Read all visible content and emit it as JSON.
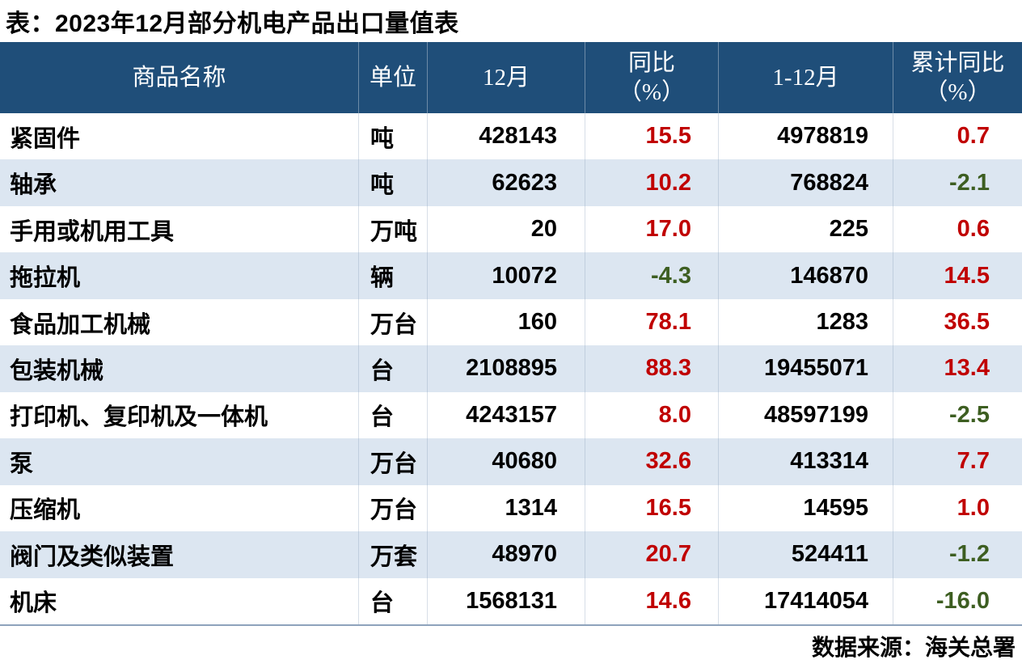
{
  "title": "表：2023年12月部分机电产品出口量值表",
  "footer": {
    "source": "数据来源：海关总署"
  },
  "colors": {
    "header_bg": "#1F4E79",
    "stripe": "#DCE6F1",
    "positive_value": "#C00000",
    "negative_value": "#3D5E21",
    "bottom_line": "#8EA3BC"
  },
  "table": {
    "columns": [
      {
        "label": "商品名称",
        "sub": ""
      },
      {
        "label": "单位",
        "sub": ""
      },
      {
        "label": "12月",
        "sub": ""
      },
      {
        "label": "同比",
        "sub": "（%）"
      },
      {
        "label": "1-12月",
        "sub": ""
      },
      {
        "label": "累计同比",
        "sub": "（%）"
      }
    ],
    "rows": [
      [
        "紧固件",
        "吨",
        "428143",
        "15.5",
        "4978819",
        "0.7"
      ],
      [
        "轴承",
        "吨",
        "62623",
        "10.2",
        "768824",
        "-2.1"
      ],
      [
        "手用或机用工具",
        "万吨",
        "20",
        "17.0",
        "225",
        "0.6"
      ],
      [
        "拖拉机",
        "辆",
        "10072",
        "-4.3",
        "146870",
        "14.5"
      ],
      [
        "食品加工机械",
        "万台",
        "160",
        "78.1",
        "1283",
        "36.5"
      ],
      [
        "包装机械",
        "台",
        "2108895",
        "88.3",
        "19455071",
        "13.4"
      ],
      [
        "打印机、复印机及一体机",
        "台",
        "4243157",
        "8.0",
        "48597199",
        "-2.5"
      ],
      [
        "泵",
        "万台",
        "40680",
        "32.6",
        "413314",
        "7.7"
      ],
      [
        "压缩机",
        "万台",
        "1314",
        "16.5",
        "14595",
        "1.0"
      ],
      [
        "阀门及类似装置",
        "万套",
        "48970",
        "20.7",
        "524411",
        "-1.2"
      ],
      [
        "机床",
        "台",
        "1568131",
        "14.6",
        "17414054",
        "-16.0"
      ]
    ]
  },
  "chart_data": {
    "type": "table",
    "title": "表：2023年12月部分机电产品出口量值表",
    "columns": [
      "商品名称",
      "单位",
      "12月",
      "同比（%）",
      "1-12月",
      "累计同比（%）"
    ],
    "rows": [
      [
        "紧固件",
        "吨",
        428143,
        15.5,
        4978819,
        0.7
      ],
      [
        "轴承",
        "吨",
        62623,
        10.2,
        768824,
        -2.1
      ],
      [
        "手用或机用工具",
        "万吨",
        20,
        17.0,
        225,
        0.6
      ],
      [
        "拖拉机",
        "辆",
        10072,
        -4.3,
        146870,
        14.5
      ],
      [
        "食品加工机械",
        "万台",
        160,
        78.1,
        1283,
        36.5
      ],
      [
        "包装机械",
        "台",
        2108895,
        88.3,
        19455071,
        13.4
      ],
      [
        "打印机、复印机及一体机",
        "台",
        4243157,
        8.0,
        48597199,
        -2.5
      ],
      [
        "泵",
        "万台",
        40680,
        32.6,
        413314,
        7.7
      ],
      [
        "压缩机",
        "万台",
        1314,
        16.5,
        14595,
        1.0
      ],
      [
        "阀门及类似装置",
        "万套",
        48970,
        20.7,
        524411,
        -1.2
      ],
      [
        "机床",
        "台",
        1568131,
        14.6,
        17414054,
        -16.0
      ]
    ],
    "source_note": "数据来源：海关总署",
    "value_color_rule": "positive growth = red, negative growth = green"
  }
}
